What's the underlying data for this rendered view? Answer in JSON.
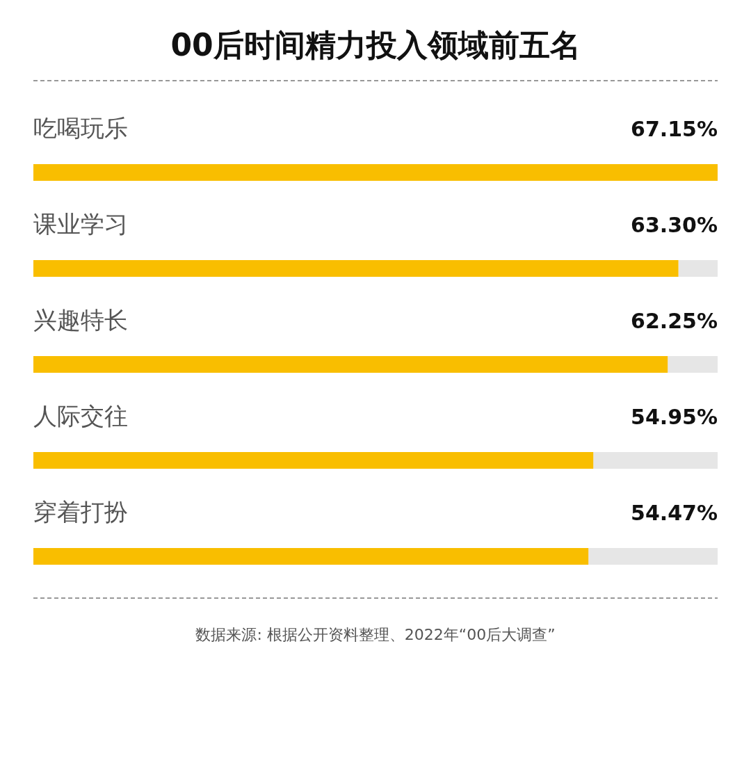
{
  "chart_data": {
    "type": "bar",
    "orientation": "horizontal",
    "title": "00后时间精力投入领域前五名",
    "categories": [
      "吃喝玩乐",
      "课业学习",
      "兴趣特长",
      "人际交往",
      "穿着打扮"
    ],
    "values": [
      67.15,
      63.3,
      62.25,
      54.95,
      54.47
    ],
    "value_labels": [
      "67.15%",
      "63.30%",
      "62.25%",
      "54.95%",
      "54.47%"
    ],
    "color": "#f9be00",
    "annotations": [
      "数据来源: 根据公开资料整理、2022年“00后大调查”"
    ]
  }
}
